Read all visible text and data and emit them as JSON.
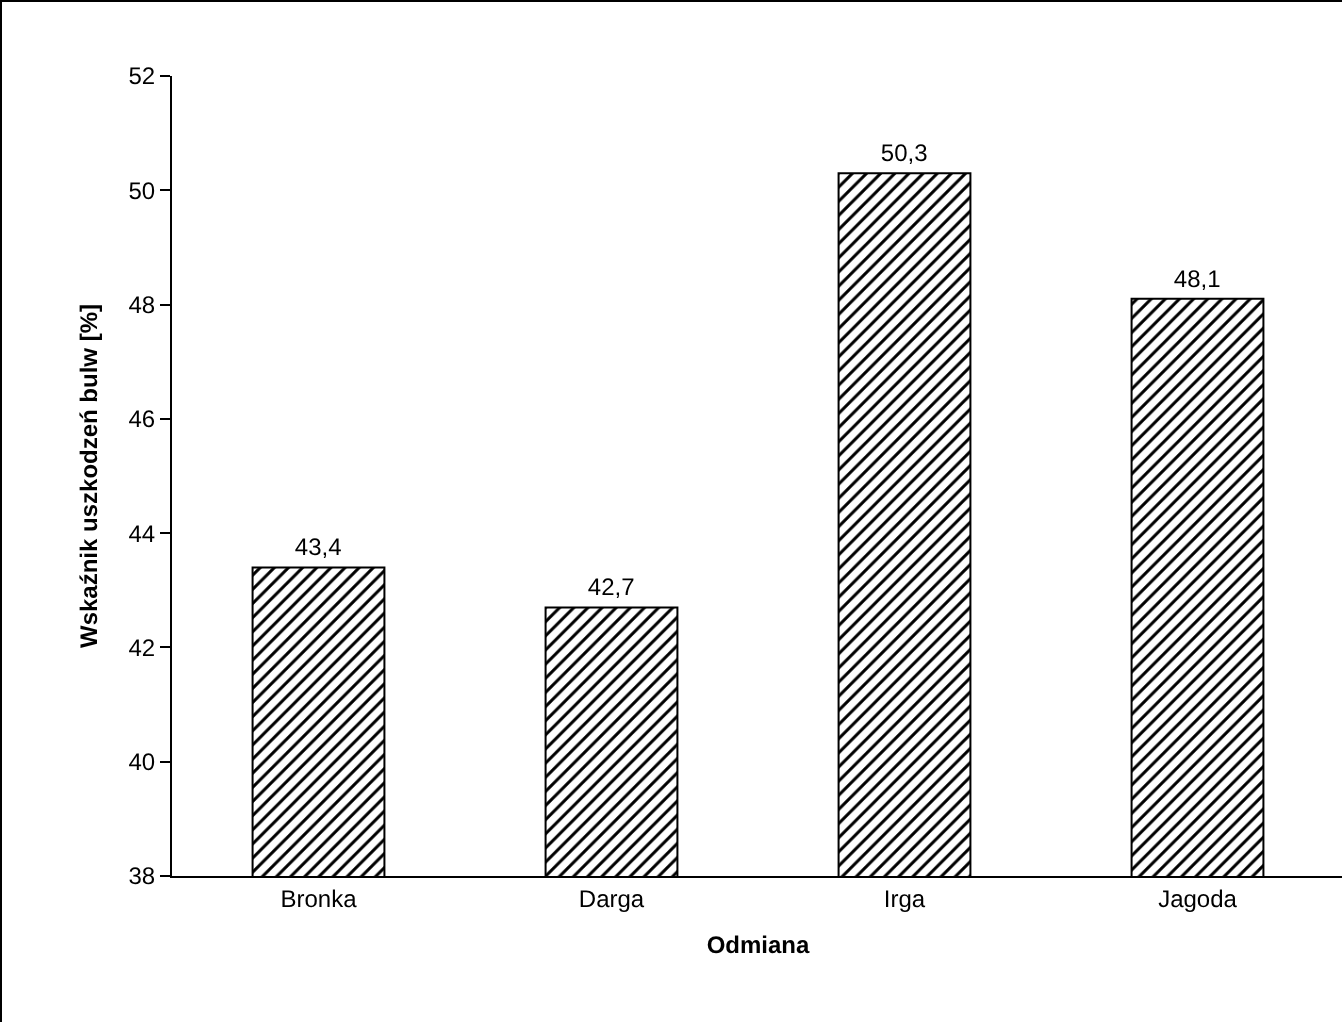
{
  "chart_data": {
    "type": "bar",
    "xlabel": "Odmiana",
    "ylabel": "Wskaźnik uszkodzeń bulw [%]",
    "categories": [
      "Bronka",
      "Darga",
      "Irga",
      "Jagoda"
    ],
    "values": [
      43.4,
      42.7,
      50.3,
      48.1
    ],
    "value_labels": [
      "43,4",
      "42,7",
      "50,3",
      "48,1"
    ],
    "color": "#000000",
    "ylim": [
      38,
      52
    ],
    "yticks": [
      38,
      40,
      42,
      44,
      46,
      48,
      50,
      52
    ],
    "grid": false,
    "legend": false
  }
}
